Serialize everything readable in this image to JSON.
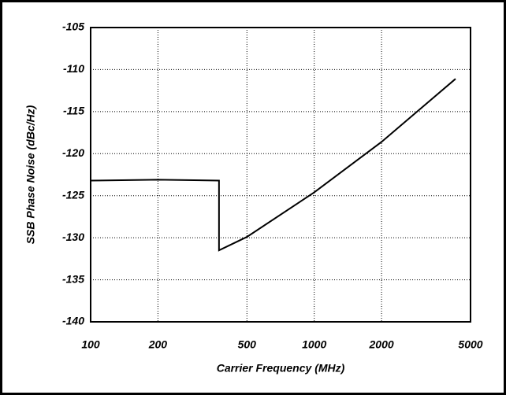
{
  "chart_data": {
    "type": "line",
    "xlabel": "Carrier Frequency (MHz)",
    "ylabel": "SSB Phase Noise (dBc/Hz)",
    "xscale": "log",
    "grid": true,
    "xlim": [
      100,
      5000
    ],
    "xticks": [
      100,
      200,
      500,
      1000,
      2000,
      5000
    ],
    "ylim": [
      -140,
      -105
    ],
    "yticks": [
      -105,
      -110,
      -115,
      -120,
      -125,
      -130,
      -135,
      -140
    ],
    "series": [
      {
        "color": "#000000",
        "x": [
          100,
          200,
          375,
          375,
          500,
          1000,
          2000,
          4285
        ],
        "values": [
          -123.2,
          -123.1,
          -123.2,
          -131.5,
          -129.9,
          -124.6,
          -118.6,
          -111.1
        ]
      }
    ]
  }
}
